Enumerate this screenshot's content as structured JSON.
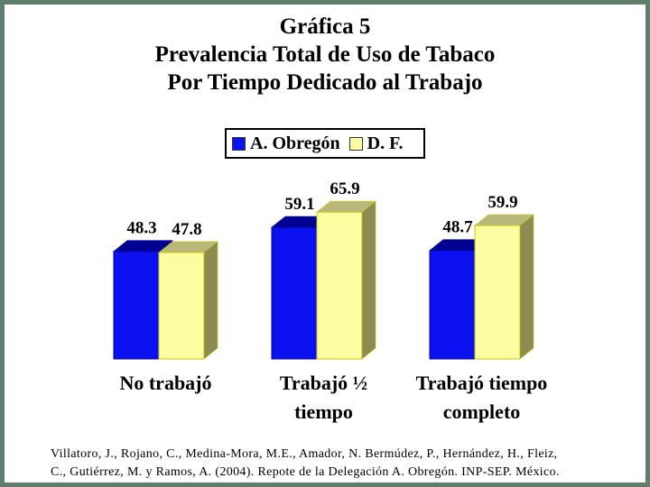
{
  "title_lines": [
    "Gráfica 5",
    "Prevalencia Total de Uso de Tabaco",
    "Por Tiempo Dedicado al Trabajo"
  ],
  "source_lines": [
    "Villatoro, J., Rojano, C., Medina-Mora, M.E., Amador, N. Bermúdez, P., Hernández, H., Fleiz,",
    "C., Gutiérrez, M. y Ramos, A. (2004). Repote de la Delegación A. Obregón. INP-SEP. México."
  ],
  "colors": {
    "frame": "#5f7f6c",
    "series_front": [
      "#0a10ee",
      "#fcfca0"
    ],
    "series_top": [
      "#000090",
      "#b8b87a"
    ],
    "series_side": [
      "#00006e",
      "#8c8c52"
    ],
    "series_outline": [
      "#0000a0",
      "#c8c800"
    ]
  },
  "chart_data": {
    "type": "bar",
    "title": "Gráfica 5 Prevalencia Total de Uso de Tabaco Por Tiempo Dedicado al Trabajo",
    "categories": [
      [
        "No trabajó"
      ],
      [
        "Trabajó ½",
        "tiempo"
      ],
      [
        "Trabajó tiempo",
        "completo"
      ]
    ],
    "series": [
      {
        "name": "A. Obregón",
        "values": [
          48.3,
          59.1,
          48.7
        ],
        "labels": [
          "48.3",
          "59.1",
          "48.7"
        ]
      },
      {
        "name": "D. F.",
        "values": [
          47.8,
          65.9,
          59.9
        ],
        "labels": [
          "47.8",
          "65.9",
          "59.9"
        ]
      }
    ],
    "xlabel": "",
    "ylabel": "",
    "grid": false,
    "legend": "top-center",
    "style": "3d-clustered"
  }
}
